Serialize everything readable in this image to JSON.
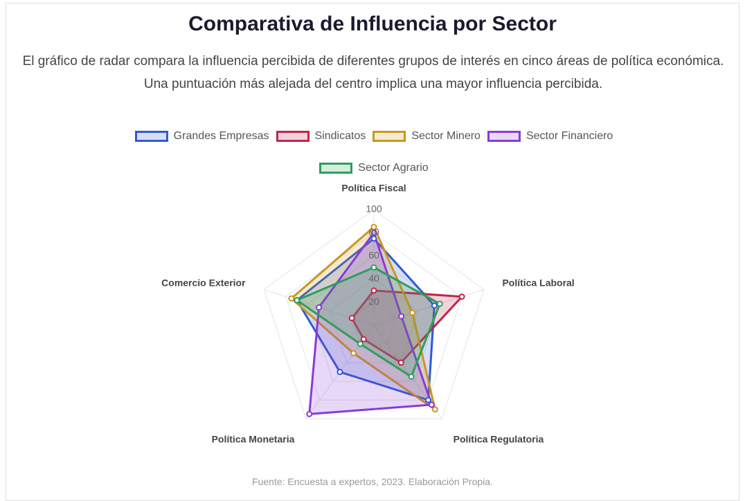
{
  "chart_data": {
    "type": "radar",
    "title": "Comparativa de Influencia por Sector",
    "subtitle": "El gráfico de radar compara la influencia percibida de diferentes grupos de interés en cinco áreas de política económica. Una puntuación más alejada del centro implica una mayor influencia percibida.",
    "source": "Fuente: Encuesta a expertos, 2023. Elaboración Propia.",
    "categories": [
      "Política Fiscal",
      "Política Laboral",
      "Política Regulatoria",
      "Política Monetaria",
      "Comercio Exterior"
    ],
    "ylim": [
      0,
      100
    ],
    "yticks": [
      20,
      40,
      60,
      80,
      100
    ],
    "grid": true,
    "series": [
      {
        "name": "Grandes Empresas",
        "color": "#2f5bd3",
        "values": [
          75,
          55,
          80,
          50,
          70
        ]
      },
      {
        "name": "Sindicatos",
        "color": "#c0254a",
        "values": [
          30,
          80,
          40,
          15,
          20
        ]
      },
      {
        "name": "Sector Minero",
        "color": "#c9971f",
        "values": [
          85,
          35,
          90,
          30,
          75
        ]
      },
      {
        "name": "Sector Financiero",
        "color": "#8a3ad6",
        "values": [
          80,
          25,
          85,
          95,
          50
        ]
      },
      {
        "name": "Sector Agrario",
        "color": "#2e9e5b",
        "values": [
          50,
          60,
          55,
          20,
          70
        ]
      }
    ]
  }
}
